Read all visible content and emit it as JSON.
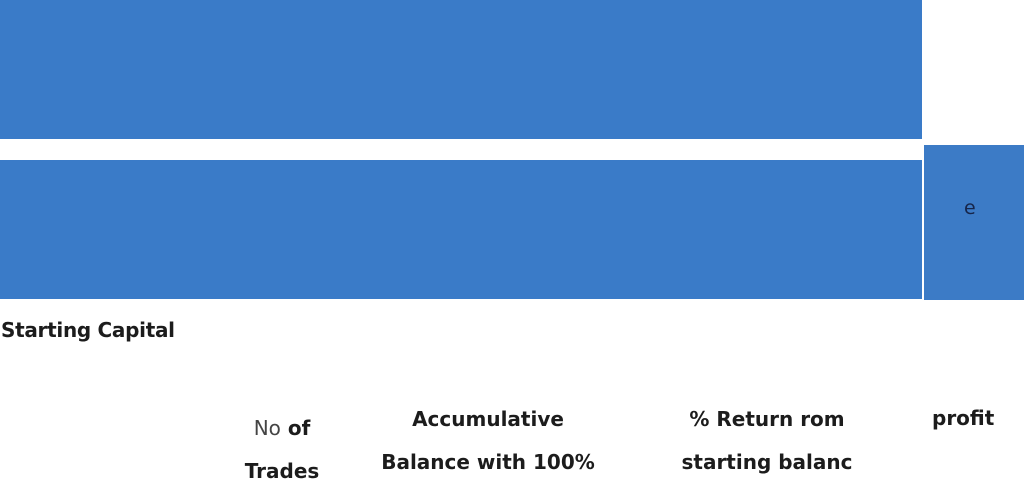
{
  "edge_block": {
    "text": "e"
  },
  "starting_capital_label": "Starting Capital",
  "columns": {
    "trades": {
      "prefix": "No",
      "line1_rest": "of",
      "line2": "Trades"
    },
    "accumulative": {
      "line1": "Accumulative",
      "line2": "Balance with 100%"
    },
    "return": {
      "line1": "% Return rom",
      "line2": "starting balanc"
    },
    "profit": {
      "line1": "profit"
    }
  },
  "colors": {
    "band": "#3a7bc8",
    "edge_block": "#3c7bc6",
    "text": "#1c1c1c"
  }
}
